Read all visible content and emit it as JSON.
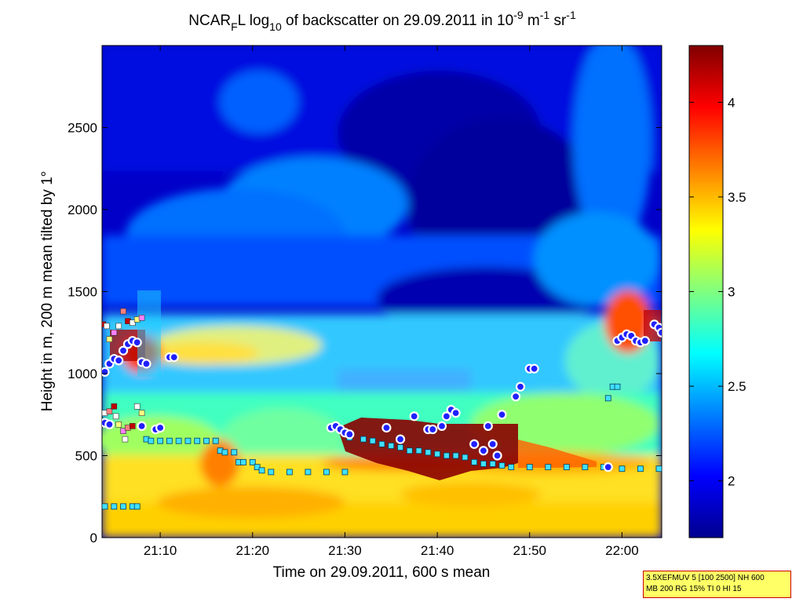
{
  "chart_data": {
    "type": "heatmap",
    "title": "NCAR_F L log10 of backscatter on 29.09.2011 in 10^-9 m^-1 sr^-1",
    "title_parts": {
      "a": "NCAR",
      "a_sub": "F",
      "b": "L log",
      "b_sub": "10",
      "c": " of backscatter on 29.09.2011 in 10",
      "c_sup": "-9",
      "d": " m",
      "d_sup": "-1",
      "e": " sr",
      "e_sup": "-1"
    },
    "xlabel": "Time on 29.09.2011, 600 s mean",
    "ylabel": "Height in m, 200 m mean tilted by 1°",
    "x_tick_labels": [
      "21:10",
      "21:20",
      "21:30",
      "21:40",
      "21:50",
      "22:00"
    ],
    "x_ticks_min": [
      8,
      18,
      28,
      38,
      48,
      58
    ],
    "xlim_min": [
      1.7,
      62.3
    ],
    "y_ticks": [
      0,
      500,
      1000,
      1500,
      2000,
      2500
    ],
    "ylim": [
      0,
      3000
    ],
    "colorbar": {
      "ticks": [
        2,
        2.5,
        3,
        3.5,
        4
      ],
      "range": [
        1.7,
        4.3
      ],
      "colormap": "jet"
    },
    "overlays": {
      "cloud_markers_circle": [
        [
          2,
          1010
        ],
        [
          2.5,
          1060
        ],
        [
          3,
          1090
        ],
        [
          3.5,
          1080
        ],
        [
          4,
          1140
        ],
        [
          4.5,
          1180
        ],
        [
          5,
          1200
        ],
        [
          5.5,
          1190
        ],
        [
          6,
          1070
        ],
        [
          6.5,
          1060
        ],
        [
          2,
          700
        ],
        [
          2.5,
          690
        ],
        [
          6,
          680
        ],
        [
          7.5,
          660
        ],
        [
          8,
          670
        ],
        [
          9,
          1100
        ],
        [
          9.5,
          1100
        ],
        [
          26.5,
          670
        ],
        [
          27,
          680
        ],
        [
          27.5,
          660
        ],
        [
          28,
          640
        ],
        [
          28.5,
          630
        ],
        [
          32.5,
          670
        ],
        [
          34,
          600
        ],
        [
          35.5,
          740
        ],
        [
          37,
          660
        ],
        [
          37.5,
          660
        ],
        [
          38.5,
          680
        ],
        [
          39,
          740
        ],
        [
          39.5,
          780
        ],
        [
          40,
          760
        ],
        [
          42,
          570
        ],
        [
          43,
          530
        ],
        [
          43.5,
          680
        ],
        [
          44,
          570
        ],
        [
          44.5,
          500
        ],
        [
          45,
          750
        ],
        [
          46.5,
          860
        ],
        [
          47,
          920
        ],
        [
          48,
          1030
        ],
        [
          48.5,
          1030
        ],
        [
          56.5,
          430
        ],
        [
          57.5,
          1200
        ],
        [
          58,
          1220
        ],
        [
          58.5,
          1240
        ],
        [
          59,
          1230
        ],
        [
          59.5,
          1200
        ],
        [
          60,
          1190
        ],
        [
          60.5,
          1200
        ],
        [
          61.5,
          1300
        ],
        [
          62,
          1280
        ],
        [
          62.3,
          1250
        ]
      ],
      "aerosol_layer_squares": [
        [
          2,
          190
        ],
        [
          3,
          190
        ],
        [
          4,
          190
        ],
        [
          5,
          190
        ],
        [
          5.5,
          190
        ],
        [
          6.5,
          600
        ],
        [
          7,
          590
        ],
        [
          8,
          590
        ],
        [
          9,
          590
        ],
        [
          10,
          590
        ],
        [
          11,
          590
        ],
        [
          12,
          590
        ],
        [
          13,
          590
        ],
        [
          14,
          590
        ],
        [
          14.5,
          530
        ],
        [
          15,
          520
        ],
        [
          16,
          520
        ],
        [
          16.5,
          460
        ],
        [
          17,
          460
        ],
        [
          18,
          460
        ],
        [
          18.5,
          430
        ],
        [
          19,
          410
        ],
        [
          20,
          400
        ],
        [
          22,
          400
        ],
        [
          24,
          400
        ],
        [
          26,
          400
        ],
        [
          28,
          400
        ],
        [
          28.5,
          610
        ],
        [
          30,
          600
        ],
        [
          31,
          590
        ],
        [
          32,
          570
        ],
        [
          33,
          560
        ],
        [
          34,
          550
        ],
        [
          35,
          530
        ],
        [
          36,
          530
        ],
        [
          37,
          520
        ],
        [
          38,
          510
        ],
        [
          39,
          500
        ],
        [
          40,
          500
        ],
        [
          41,
          490
        ],
        [
          42,
          460
        ],
        [
          43,
          450
        ],
        [
          44,
          450
        ],
        [
          45,
          440
        ],
        [
          46,
          430
        ],
        [
          48,
          430
        ],
        [
          50,
          430
        ],
        [
          52,
          430
        ],
        [
          54,
          430
        ],
        [
          56,
          430
        ],
        [
          58,
          420
        ],
        [
          60,
          420
        ],
        [
          62,
          420
        ],
        [
          56.5,
          850
        ],
        [
          57,
          920
        ],
        [
          57.5,
          920
        ]
      ],
      "ceilometer_squares_multi": [
        [
          1.8,
          1300
        ],
        [
          2.2,
          1290
        ],
        [
          2.5,
          1210
        ],
        [
          3,
          1250
        ],
        [
          3.5,
          1290
        ],
        [
          4,
          1380
        ],
        [
          4.5,
          1320
        ],
        [
          5,
          1310
        ],
        [
          5.5,
          1330
        ],
        [
          6,
          1340
        ],
        [
          2,
          760
        ],
        [
          2.5,
          770
        ],
        [
          3,
          800
        ],
        [
          3.2,
          740
        ],
        [
          3.5,
          690
        ],
        [
          4,
          650
        ],
        [
          4.2,
          600
        ],
        [
          4.5,
          670
        ],
        [
          5,
          680
        ],
        [
          5.5,
          800
        ],
        [
          6,
          760
        ]
      ]
    }
  },
  "info_box": {
    "line1": "3.5XEFMUV 5 [100 2500] NH 600",
    "line2": "MB 200 RG 15% TI 0 HI 15"
  }
}
